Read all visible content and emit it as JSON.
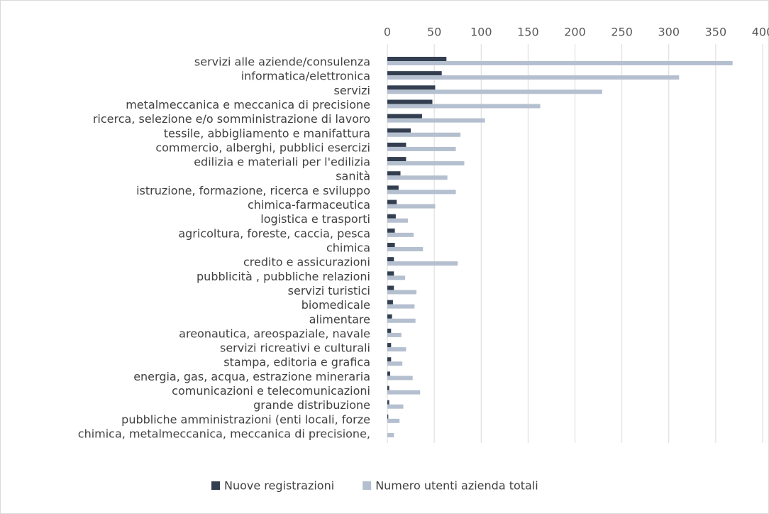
{
  "chart_data": {
    "type": "barh",
    "categories": [
      "servizi alle aziende/consulenza",
      "informatica/elettronica",
      "servizi",
      "metalmeccanica e meccanica di precisione",
      "ricerca, selezione e/o somministrazione di lavoro",
      "tessile, abbigliamento e manifattura",
      "commercio, alberghi, pubblici esercizi",
      "edilizia e materiali per l'edilizia",
      "sanità",
      "istruzione, formazione, ricerca e sviluppo",
      "chimica-farmaceutica",
      "logistica e trasporti",
      "agricoltura, foreste, caccia, pesca",
      "chimica",
      "credito e assicurazioni",
      "pubblicità , pubbliche relazioni",
      "servizi turistici",
      "biomedicale",
      "alimentare",
      "areonautica, areospaziale, navale",
      "servizi ricreativi e culturali",
      "stampa, editoria e grafica",
      "energia, gas, acqua, estrazione mineraria",
      "comunicazioni e telecomunicazioni",
      "grande distribuzione",
      "pubbliche amministrazioni (enti locali, forze",
      "chimica, metalmeccanica, meccanica di precisione,"
    ],
    "series": [
      {
        "name": "Nuove registrazioni",
        "color": "#333f50",
        "values": [
          63,
          58,
          51,
          48,
          37,
          25,
          20,
          20,
          14,
          12,
          10,
          9,
          8,
          8,
          7,
          7,
          7,
          6,
          5,
          4,
          4,
          4,
          3,
          2,
          2,
          1,
          0
        ]
      },
      {
        "name": "Numero utenti azienda totali",
        "color": "#b4bfcf",
        "values": [
          368,
          311,
          229,
          163,
          104,
          78,
          73,
          82,
          64,
          73,
          51,
          22,
          28,
          38,
          75,
          19,
          31,
          29,
          30,
          15,
          20,
          16,
          27,
          35,
          17,
          13,
          7
        ]
      }
    ],
    "xlim": [
      0,
      400
    ],
    "xticks": [
      0,
      50,
      100,
      150,
      200,
      250,
      300,
      350,
      400
    ],
    "grid": true,
    "legend": "bottom"
  }
}
